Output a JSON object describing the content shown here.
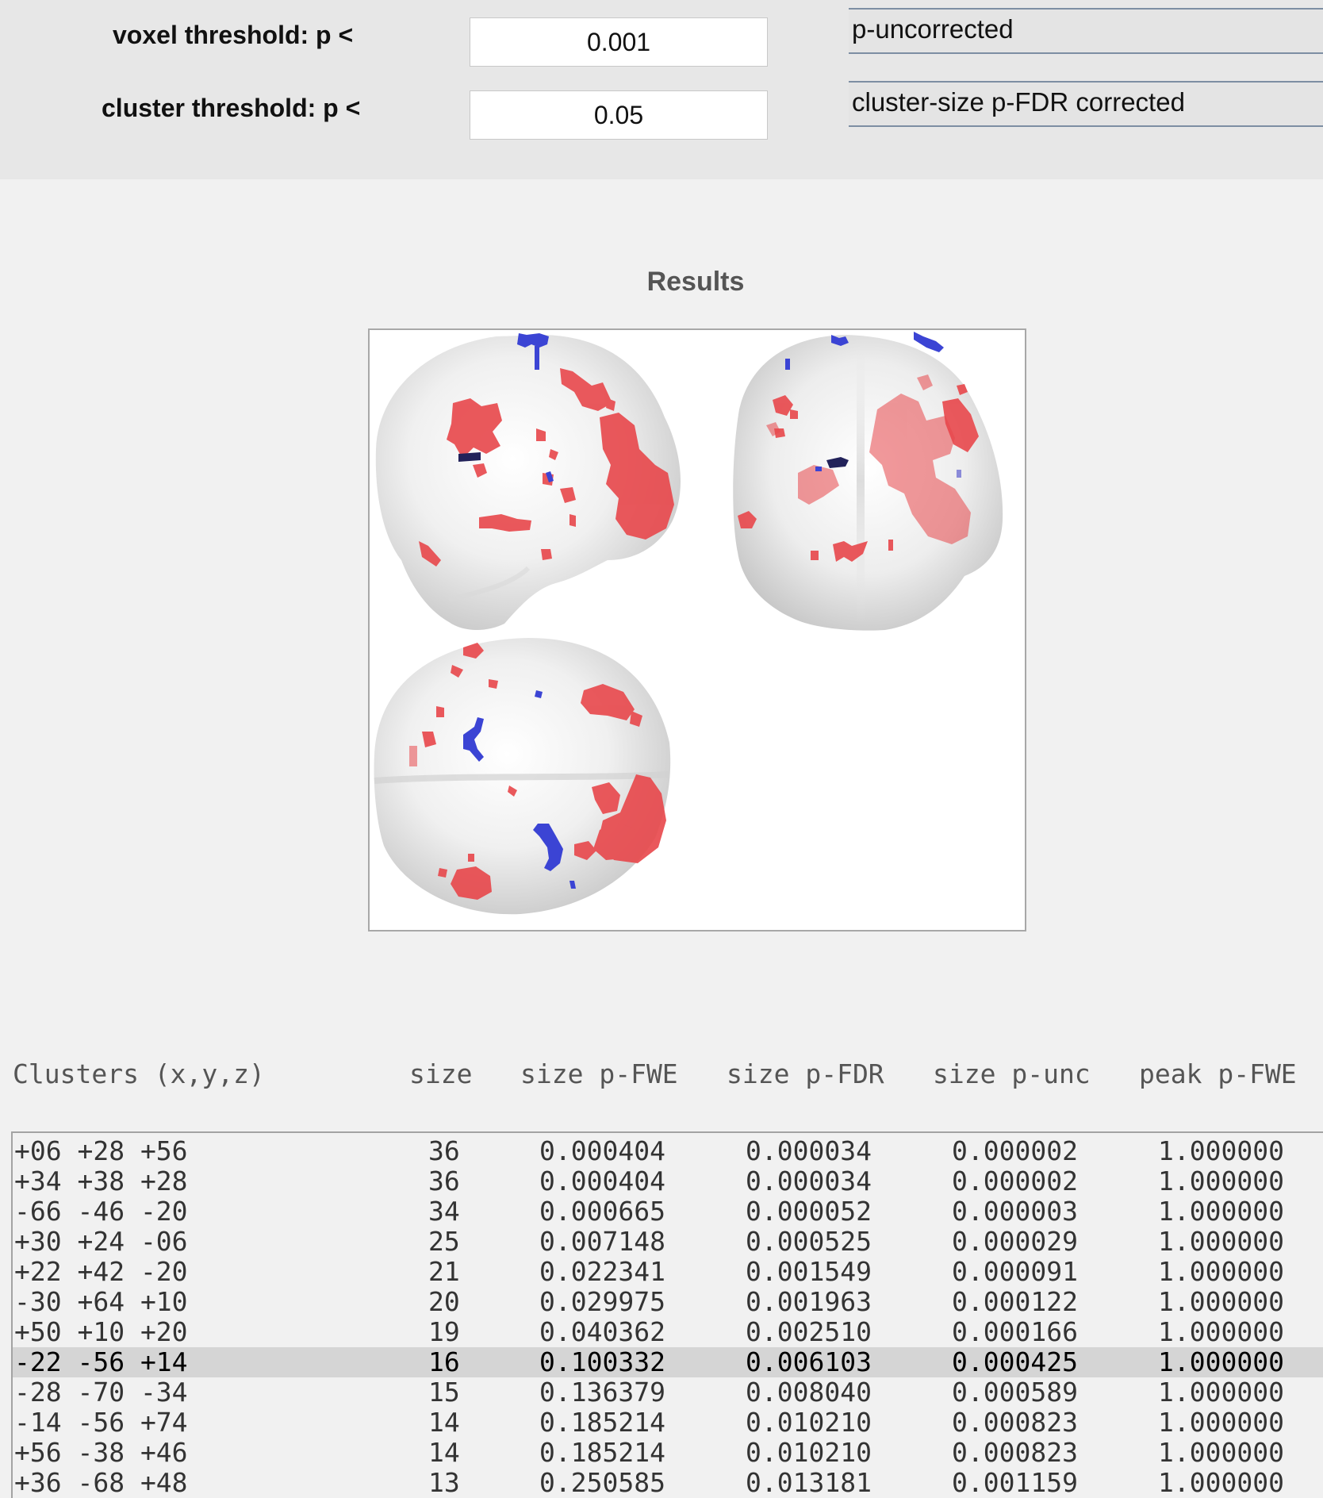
{
  "thresholds": {
    "voxel": {
      "label": "voxel threshold: p <",
      "value": "0.001",
      "correction": "p-uncorrected"
    },
    "cluster": {
      "label": "cluster threshold: p <",
      "value": "0.05",
      "correction": "cluster-size p-FDR corrected"
    }
  },
  "results": {
    "title": "Results",
    "colors": {
      "positive": "#e84c4c",
      "negative": "#3a44d6",
      "selected_row": "#d5d5d5"
    }
  },
  "table": {
    "headers": [
      "Clusters (x,y,z)",
      "size",
      "size p-FWE",
      "size p-FDR",
      "size p-unc",
      "peak p-FWE"
    ],
    "selected_index": 7,
    "rows": [
      {
        "coords": "+06 +28 +56",
        "size": "36",
        "p_fwe": "0.000404",
        "p_fdr": "0.000034",
        "p_unc": "0.000002",
        "peak_fwe": "1.000000"
      },
      {
        "coords": "+34 +38 +28",
        "size": "36",
        "p_fwe": "0.000404",
        "p_fdr": "0.000034",
        "p_unc": "0.000002",
        "peak_fwe": "1.000000"
      },
      {
        "coords": "-66 -46 -20",
        "size": "34",
        "p_fwe": "0.000665",
        "p_fdr": "0.000052",
        "p_unc": "0.000003",
        "peak_fwe": "1.000000"
      },
      {
        "coords": "+30 +24 -06",
        "size": "25",
        "p_fwe": "0.007148",
        "p_fdr": "0.000525",
        "p_unc": "0.000029",
        "peak_fwe": "1.000000"
      },
      {
        "coords": "+22 +42 -20",
        "size": "21",
        "p_fwe": "0.022341",
        "p_fdr": "0.001549",
        "p_unc": "0.000091",
        "peak_fwe": "1.000000"
      },
      {
        "coords": "-30 +64 +10",
        "size": "20",
        "p_fwe": "0.029975",
        "p_fdr": "0.001963",
        "p_unc": "0.000122",
        "peak_fwe": "1.000000"
      },
      {
        "coords": "+50 +10 +20",
        "size": "19",
        "p_fwe": "0.040362",
        "p_fdr": "0.002510",
        "p_unc": "0.000166",
        "peak_fwe": "1.000000"
      },
      {
        "coords": "-22 -56 +14",
        "size": "16",
        "p_fwe": "0.100332",
        "p_fdr": "0.006103",
        "p_unc": "0.000425",
        "peak_fwe": "1.000000"
      },
      {
        "coords": "-28 -70 -34",
        "size": "15",
        "p_fwe": "0.136379",
        "p_fdr": "0.008040",
        "p_unc": "0.000589",
        "peak_fwe": "1.000000"
      },
      {
        "coords": "-14 -56 +74",
        "size": "14",
        "p_fwe": "0.185214",
        "p_fdr": "0.010210",
        "p_unc": "0.000823",
        "peak_fwe": "1.000000"
      },
      {
        "coords": "+56 -38 +46",
        "size": "14",
        "p_fwe": "0.185214",
        "p_fdr": "0.010210",
        "p_unc": "0.000823",
        "peak_fwe": "1.000000"
      },
      {
        "coords": "+36 -68 +48",
        "size": "13",
        "p_fwe": "0.250585",
        "p_fdr": "0.013181",
        "p_unc": "0.001159",
        "peak_fwe": "1.000000"
      }
    ]
  }
}
